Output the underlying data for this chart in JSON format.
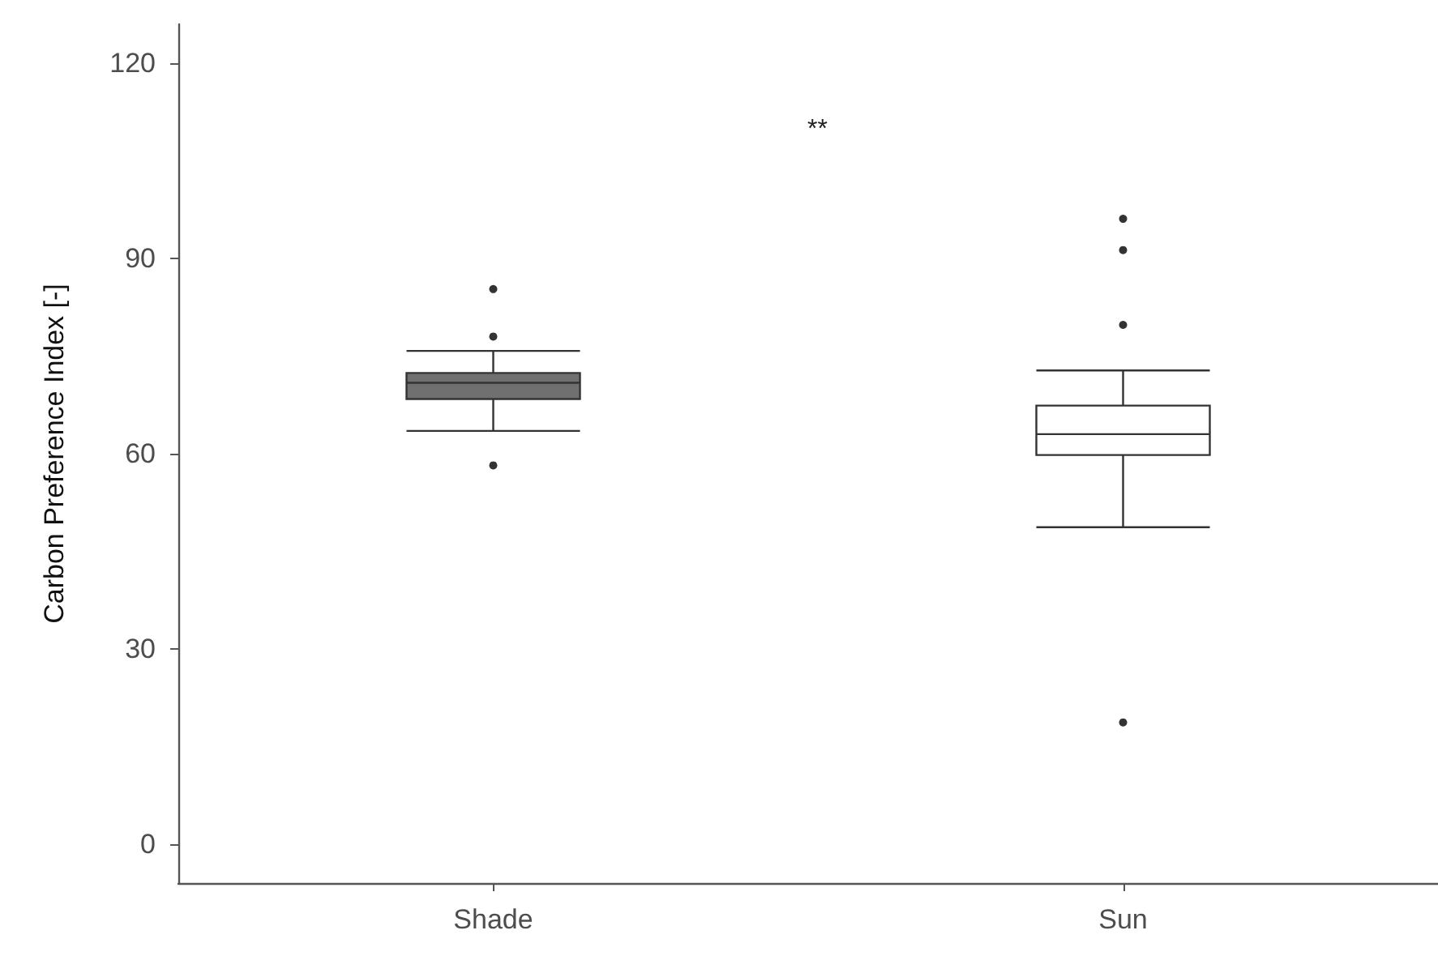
{
  "chart_data": {
    "type": "box",
    "ylabel": "Carbon Preference Index [-]",
    "categories": [
      "Shade",
      "Sun"
    ],
    "boxes": [
      {
        "low": 63.5,
        "q1": 68.4,
        "median": 70.9,
        "q3": 72.4,
        "high": 75.8,
        "outliers": [
          85.3,
          78.0,
          58.2
        ]
      },
      {
        "low": 48.7,
        "q1": 59.8,
        "median": 63.0,
        "q3": 67.4,
        "high": 72.8,
        "outliers": [
          96.1,
          91.3,
          79.8,
          18.7
        ]
      }
    ],
    "colors": [
      "#707070",
      "#ffffff"
    ],
    "ylim": [
      -6,
      126
    ],
    "yticks": [
      0,
      30,
      60,
      90,
      120
    ],
    "grid": false,
    "annotations": [
      "**"
    ]
  }
}
